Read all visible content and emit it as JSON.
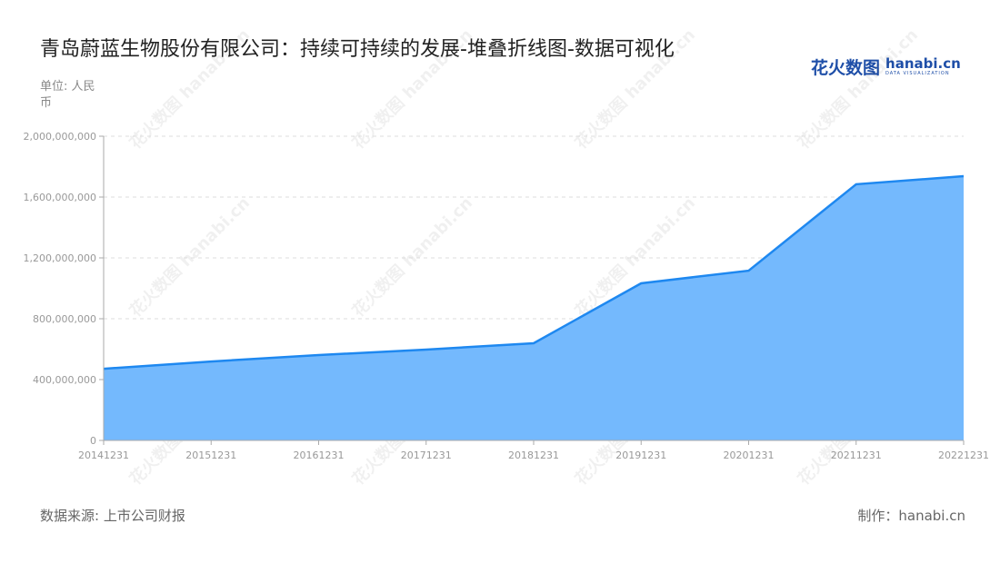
{
  "title": "青岛蔚蓝生物股份有限公司：持续可持续的发展-堆叠折线图-数据可视化",
  "unit": "单位: 人民币",
  "logo": {
    "cn": "花火数图",
    "en": "hanabi.cn",
    "tagline": "DATA VISUALIZATION"
  },
  "watermark": "花火数图 hanabi.cn",
  "source": "数据来源: 上市公司财报",
  "maker": "制作：hanabi.cn",
  "colors": {
    "line": "#1e88f0",
    "fill": "#74b9fd"
  },
  "chart_data": {
    "type": "area",
    "categories": [
      "20141231",
      "20151231",
      "20161231",
      "20171231",
      "20181231",
      "20191231",
      "20201231",
      "20211231",
      "20221231"
    ],
    "values": [
      471000000,
      519000000,
      561000000,
      597000000,
      639000000,
      1033000000,
      1116000000,
      1684000000,
      1737000000
    ],
    "ylim": [
      0,
      2000000000
    ],
    "yticks": [
      "0",
      "400,000,000",
      "800,000,000",
      "1,200,000,000",
      "1,600,000,000",
      "2,000,000,000"
    ],
    "grid": true
  }
}
